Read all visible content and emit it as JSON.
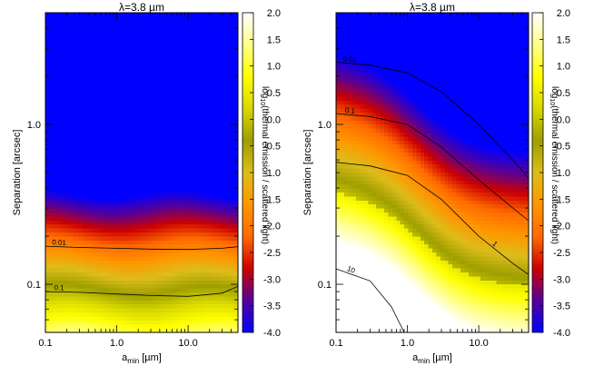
{
  "chart_data": [
    {
      "type": "heatmap",
      "panel": "left",
      "title": "λ=3.8 µm",
      "xlabel": "a",
      "xlabel_sub": "min",
      "xlabel_unit": " [µm]",
      "ylabel": "Separation [arcsec]",
      "colorbar_label": "log(thermal emission / scattered light)",
      "colorbar_label_base": "log",
      "colorbar_label_sub": "10",
      "colorbar_label_rest": "(thermal emission / scattered light)",
      "x_scale": "log",
      "y_scale": "log",
      "xlim": [
        0.1,
        50
      ],
      "ylim": [
        0.05,
        5.0
      ],
      "xticks": [
        0.1,
        1.0,
        10.0
      ],
      "xtick_labels": [
        "0.1",
        "1.0",
        "10.0"
      ],
      "yticks": [
        0.1,
        1.0
      ],
      "ytick_labels": [
        "0.1",
        "1.0"
      ],
      "colorbar_range": [
        -4.0,
        2.0
      ],
      "colorbar_ticks": [
        "2.0",
        "1.5",
        "1.0",
        "0.5",
        "0.0",
        "-0.5",
        "-1.0",
        "-1.5",
        "-2.0",
        "-2.5",
        "-3.0",
        "-3.5",
        "-4.0"
      ],
      "colorscale": [
        "#0000ff",
        "#560099",
        "#cc0000",
        "#ff6a00",
        "#ff9600",
        "#dcbd1a",
        "#9e9e00",
        "#d8d800",
        "#ffff00",
        "#ffff88",
        "#ffffff"
      ],
      "contours": [
        {
          "label": "0.01",
          "x": [
            0.1,
            0.3,
            1,
            3,
            10,
            30,
            50
          ],
          "y": [
            0.173,
            0.17,
            0.168,
            0.166,
            0.165,
            0.168,
            0.172
          ]
        },
        {
          "label": "0.1",
          "x": [
            0.1,
            0.3,
            1,
            3,
            10,
            30,
            50
          ],
          "y": [
            0.09,
            0.089,
            0.087,
            0.085,
            0.084,
            0.088,
            0.097
          ]
        }
      ]
    },
    {
      "type": "heatmap",
      "panel": "right",
      "title": "λ=3.8 µm",
      "xlabel": "a",
      "xlabel_sub": "min",
      "xlabel_unit": " [µm]",
      "ylabel": "Separation [arcsec]",
      "colorbar_label": "log(thermal emission / scattered light)",
      "colorbar_label_base": "log",
      "colorbar_label_sub": "10",
      "colorbar_label_rest": "(thermal emission / scattered light)",
      "x_scale": "log",
      "y_scale": "log",
      "xlim": [
        0.1,
        50
      ],
      "ylim": [
        0.05,
        5.0
      ],
      "xticks": [
        0.1,
        1.0,
        10.0
      ],
      "xtick_labels": [
        "0.1",
        "1.0",
        "10.0"
      ],
      "yticks": [
        0.1,
        1.0
      ],
      "ytick_labels": [
        "0.1",
        "1.0"
      ],
      "colorbar_range": [
        -4.0,
        2.0
      ],
      "colorbar_ticks": [
        "2.0",
        "1.5",
        "1.0",
        "0.5",
        "0.0",
        "-0.5",
        "-1.0",
        "-1.5",
        "-2.0",
        "-2.5",
        "-3.0",
        "-3.5",
        "-4.0"
      ],
      "colorscale": [
        "#0000ff",
        "#560099",
        "#cc0000",
        "#ff6a00",
        "#ff9600",
        "#dcbd1a",
        "#9e9e00",
        "#d8d800",
        "#ffff00",
        "#ffff88",
        "#ffffff"
      ],
      "contours": [
        {
          "label": "0.01",
          "x": [
            0.1,
            0.3,
            1,
            3,
            10,
            30,
            50
          ],
          "y": [
            2.45,
            2.35,
            2.1,
            1.6,
            1.0,
            0.6,
            0.46
          ]
        },
        {
          "label": "0.1",
          "x": [
            0.1,
            0.3,
            1,
            3,
            10,
            30,
            50
          ],
          "y": [
            1.17,
            1.12,
            1.0,
            0.72,
            0.45,
            0.3,
            0.25
          ]
        },
        {
          "label": "1",
          "x": [
            0.1,
            0.3,
            1,
            3,
            10,
            30,
            50
          ],
          "y": [
            0.58,
            0.55,
            0.48,
            0.34,
            0.2,
            0.135,
            0.115
          ]
        },
        {
          "label": "10",
          "x": [
            0.1,
            0.3,
            0.6,
            0.9
          ],
          "y": [
            0.125,
            0.105,
            0.072,
            0.05
          ]
        }
      ]
    }
  ]
}
